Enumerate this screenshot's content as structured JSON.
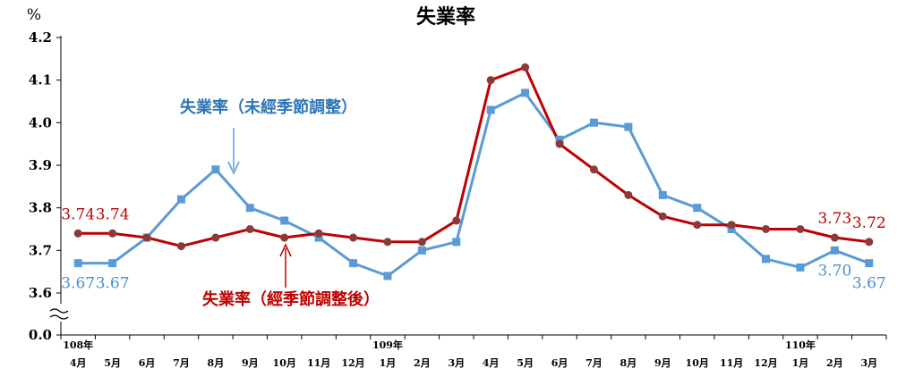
{
  "chart_data": {
    "type": "line",
    "title": "失業率",
    "ylabel": "%",
    "yticks": [
      "0.0",
      "3.6",
      "3.7",
      "3.8",
      "3.9",
      "4.0",
      "4.1",
      "4.2"
    ],
    "ylim": [
      3.6,
      4.2
    ],
    "axis_break": true,
    "grid": false,
    "categories": [
      "4月",
      "5月",
      "6月",
      "7月",
      "8月",
      "9月",
      "10月",
      "11月",
      "12月",
      "1月",
      "2月",
      "3月",
      "4月",
      "5月",
      "6月",
      "7月",
      "8月",
      "9月",
      "10月",
      "11月",
      "12月",
      "1月",
      "2月",
      "3月"
    ],
    "year_labels": [
      {
        "index": 0,
        "label": "108年"
      },
      {
        "index": 9,
        "label": "109年"
      },
      {
        "index": 21,
        "label": "110年"
      }
    ],
    "series": [
      {
        "name": "失業率（未經季節調整）",
        "color": "#5b9bd5",
        "marker": "square",
        "values": [
          3.67,
          3.67,
          3.73,
          3.82,
          3.89,
          3.8,
          3.77,
          3.73,
          3.67,
          3.64,
          3.7,
          3.72,
          4.03,
          4.07,
          3.96,
          4.0,
          3.99,
          3.83,
          3.8,
          3.75,
          3.68,
          3.66,
          3.7,
          3.67
        ],
        "data_labels": [
          {
            "index": 0,
            "text": "3.67"
          },
          {
            "index": 1,
            "text": "3.67"
          },
          {
            "index": 22,
            "text": "3.70"
          },
          {
            "index": 23,
            "text": "3.67"
          }
        ]
      },
      {
        "name": "失業率（經季節調整後）",
        "color": "#c00000",
        "marker": "circle",
        "values": [
          3.74,
          3.74,
          3.73,
          3.71,
          3.73,
          3.75,
          3.73,
          3.74,
          3.73,
          3.72,
          3.72,
          3.77,
          4.1,
          4.13,
          3.95,
          3.89,
          3.83,
          3.78,
          3.76,
          3.76,
          3.75,
          3.75,
          3.73,
          3.72
        ],
        "data_labels": [
          {
            "index": 0,
            "text": "3.74"
          },
          {
            "index": 1,
            "text": "3.74"
          },
          {
            "index": 22,
            "text": "3.73"
          },
          {
            "index": 23,
            "text": "3.72"
          }
        ]
      }
    ],
    "annotations": [
      {
        "series": 0,
        "text": "失業率（未經季節調整）"
      },
      {
        "series": 1,
        "text": "失業率（經季節調整後）"
      }
    ]
  }
}
